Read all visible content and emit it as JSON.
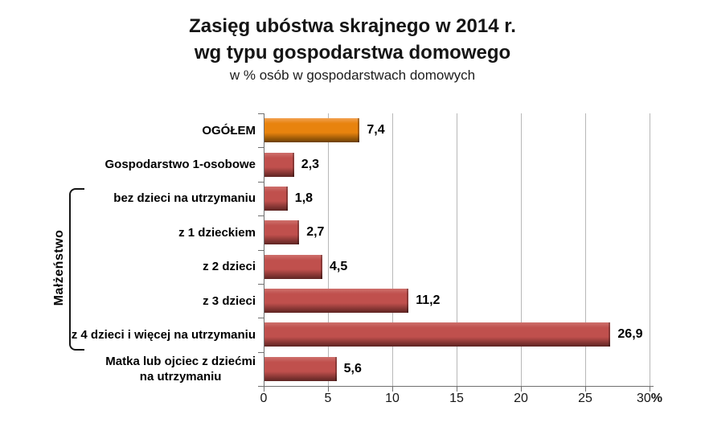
{
  "title": {
    "line1": "Zasięg ubóstwa skrajnego w 2014 r.",
    "line2": "wg typu gospodarstwa domowego",
    "subtitle": "w % osób w gospodarstwach domowych"
  },
  "chart_data": {
    "type": "bar",
    "orientation": "horizontal",
    "title": "Zasięg ubóstwa skrajnego w 2014 r. wg typu gospodarstwa domowego",
    "subtitle": "w % osób w gospodarstwach domowych",
    "categories": [
      "OGÓŁEM",
      "Gospodarstwo 1-osobowe",
      "bez dzieci na utrzymaniu",
      "z 1 dzieckiem",
      "z 2 dzieci",
      "z 3 dzieci",
      "z 4 dzieci i więcej na utrzymaniu",
      "Matka lub ojciec z dziećmi\nna utrzymaniu"
    ],
    "values": [
      7.4,
      2.3,
      1.8,
      2.7,
      4.5,
      11.2,
      26.9,
      5.6
    ],
    "value_labels": [
      "7,4",
      "2,3",
      "1,8",
      "2,7",
      "4,5",
      "11,2",
      "26,9",
      "5,6"
    ],
    "highlight_index": 0,
    "xlim": [
      0,
      30
    ],
    "xticks": [
      0,
      5,
      10,
      15,
      20,
      25,
      30
    ],
    "x_unit_suffix": "%",
    "grid": true,
    "legend": "none",
    "group": {
      "label": "Małżeństwo",
      "from_index": 2,
      "to_index": 6
    },
    "colors": {
      "total_bar": "#E8830E",
      "total_bar_light": "#F2A150",
      "total_bar_dark": "#6B3F04",
      "bar": "#C0504D",
      "bar_light": "#CE706C",
      "bar_dark": "#5E2422",
      "gridline": "#B8B8B8",
      "axis": "#707070",
      "text": "#000000"
    }
  }
}
